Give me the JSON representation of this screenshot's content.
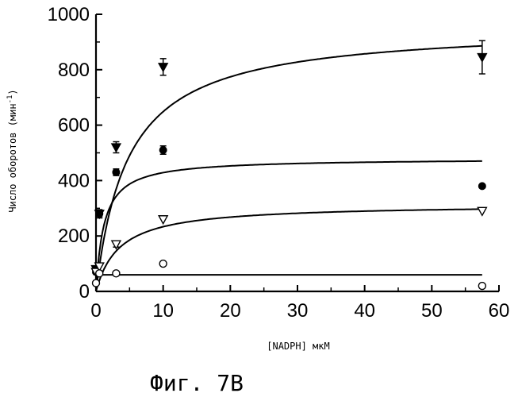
{
  "chart_data": {
    "type": "scatter",
    "xlabel": "[NADPH] мкМ",
    "ylabel": "Число оборотов (мин",
    "ylabel_superscript": "-1",
    "ylabel_close": ")",
    "caption": "Фиг. 7B",
    "xlim": [
      0,
      60
    ],
    "ylim": [
      0,
      1000
    ],
    "x_ticks": [
      "0",
      "10",
      "20",
      "30",
      "40",
      "50",
      "60"
    ],
    "y_ticks": [
      "0",
      "200",
      "400",
      "600",
      "800",
      "1000"
    ],
    "series": [
      {
        "marker": "filled-down-triangle",
        "x": [
          0,
          0.5,
          3,
          10,
          57.5
        ],
        "y": [
          80,
          280,
          520,
          810,
          845
        ],
        "err": [
          0,
          15,
          20,
          30,
          60
        ],
        "fit": {
          "vmax": 960,
          "km": 4.8
        }
      },
      {
        "marker": "filled-circle",
        "x": [
          0,
          0.5,
          3,
          10,
          57.5
        ],
        "y": [
          70,
          280,
          430,
          510,
          380
        ],
        "err": [
          0,
          10,
          12,
          15,
          0
        ],
        "fit": {
          "vmax": 480,
          "km": 1.2
        }
      },
      {
        "marker": "open-down-triangle",
        "x": [
          0,
          0.5,
          3,
          10,
          57.5
        ],
        "y": [
          70,
          90,
          170,
          260,
          290
        ],
        "err": [
          0,
          0,
          10,
          0,
          0
        ],
        "fit": {
          "vmax": 315,
          "km": 3.5
        }
      },
      {
        "marker": "open-circle",
        "x": [
          0,
          0.5,
          3,
          10,
          57.5
        ],
        "y": [
          30,
          65,
          65,
          100,
          20
        ],
        "err": [
          0,
          0,
          0,
          0,
          0
        ],
        "fit": {
          "flat": 60
        }
      }
    ]
  }
}
